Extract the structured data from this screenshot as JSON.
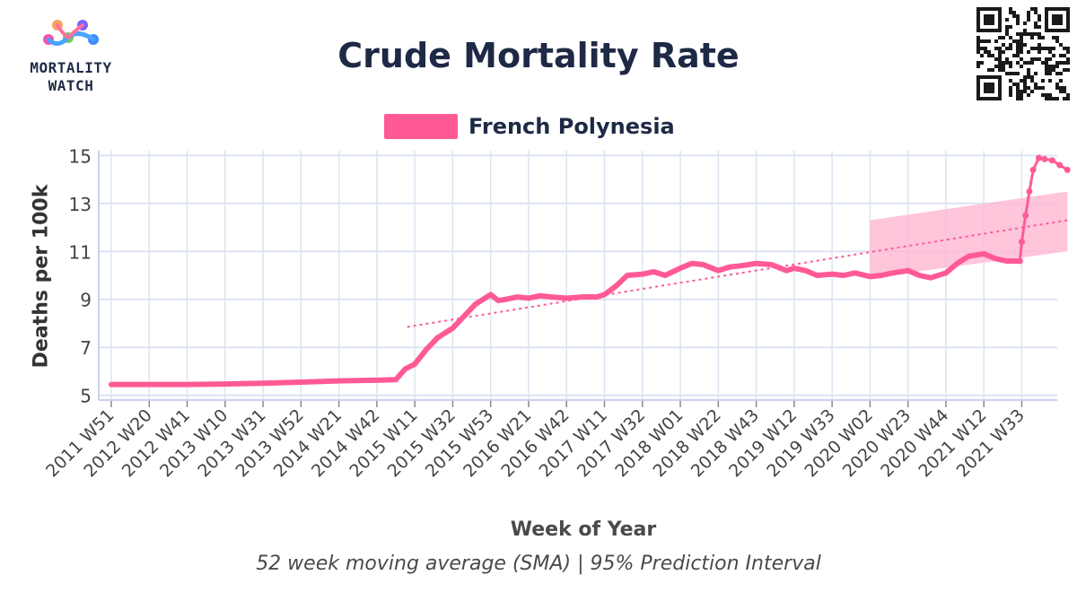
{
  "brand": {
    "line1": "MORTALITY",
    "line2": "WATCH"
  },
  "colors": {
    "series": "#ff5a96",
    "band": "#ffb6d2",
    "grid": "#dde3f2",
    "axis": "#c9d2ea",
    "text": "#1e2a45"
  },
  "chart_data": {
    "type": "line",
    "title": "Crude Mortality Rate",
    "xlabel": "Week of Year",
    "ylabel": "Deaths per 100k",
    "caption": "52 week moving average (SMA) | 95% Prediction Interval",
    "ylim": [
      4.8,
      15.2
    ],
    "yticks": [
      5,
      7,
      9,
      11,
      13,
      15
    ],
    "grid": true,
    "legend_position": "top-center",
    "x_ticks": [
      "2011 W51",
      "2012 W20",
      "2012 W41",
      "2013 W10",
      "2013 W31",
      "2013 W52",
      "2014 W21",
      "2014 W42",
      "2015 W11",
      "2015 W32",
      "2015 W53",
      "2016 W21",
      "2016 W42",
      "2017 W11",
      "2017 W32",
      "2018 W01",
      "2018 W22",
      "2018 W43",
      "2019 W12",
      "2019 W33",
      "2020 W02",
      "2020 W23",
      "2020 W44",
      "2021 W12",
      "2021 W33"
    ],
    "series": [
      {
        "name": "French Polynesia",
        "x_tick_index": [
          0,
          1,
          2,
          3,
          4,
          5,
          6,
          7,
          7.5,
          7.75,
          8,
          8.3,
          8.6,
          9,
          9.3,
          9.6,
          10,
          10.2,
          10.4,
          10.7,
          11,
          11.3,
          11.6,
          12,
          12.4,
          12.8,
          13,
          13.3,
          13.6,
          14,
          14.3,
          14.6,
          15,
          15.3,
          15.6,
          16,
          16.3,
          16.6,
          17,
          17.4,
          17.8,
          18,
          18.3,
          18.6,
          19,
          19.3,
          19.6,
          20,
          20.3,
          20.6,
          21,
          21.3,
          21.6,
          22,
          22.3,
          22.6,
          23,
          23.3,
          23.6,
          23.95
        ],
        "values": [
          5.45,
          5.45,
          5.45,
          5.47,
          5.5,
          5.55,
          5.6,
          5.63,
          5.65,
          6.1,
          6.3,
          6.9,
          7.4,
          7.8,
          8.3,
          8.8,
          9.2,
          8.95,
          9.0,
          9.1,
          9.05,
          9.15,
          9.1,
          9.05,
          9.1,
          9.1,
          9.2,
          9.55,
          10.0,
          10.05,
          10.15,
          10.0,
          10.3,
          10.5,
          10.45,
          10.2,
          10.35,
          10.4,
          10.5,
          10.45,
          10.2,
          10.3,
          10.2,
          10.0,
          10.05,
          10.0,
          10.1,
          9.95,
          10.0,
          10.1,
          10.2,
          10.0,
          9.9,
          10.1,
          10.5,
          10.8,
          10.9,
          10.7,
          10.6,
          10.6
        ]
      },
      {
        "name": "",
        "x_tick_index": [
          23.95,
          24.0,
          24.1,
          24.2,
          24.3,
          24.45,
          24.6,
          24.8,
          25.0,
          25.2
        ],
        "values": [
          10.6,
          11.4,
          12.5,
          13.5,
          14.4,
          14.9,
          14.85,
          14.8,
          14.6,
          14.4
        ]
      }
    ],
    "trend": {
      "x_tick_index": [
        7.8,
        25.2
      ],
      "values": [
        7.85,
        12.3
      ]
    },
    "prediction_interval": {
      "x_tick_index": [
        20,
        25.2
      ],
      "lower": [
        9.9,
        11.0
      ],
      "upper": [
        12.3,
        13.5
      ]
    }
  }
}
